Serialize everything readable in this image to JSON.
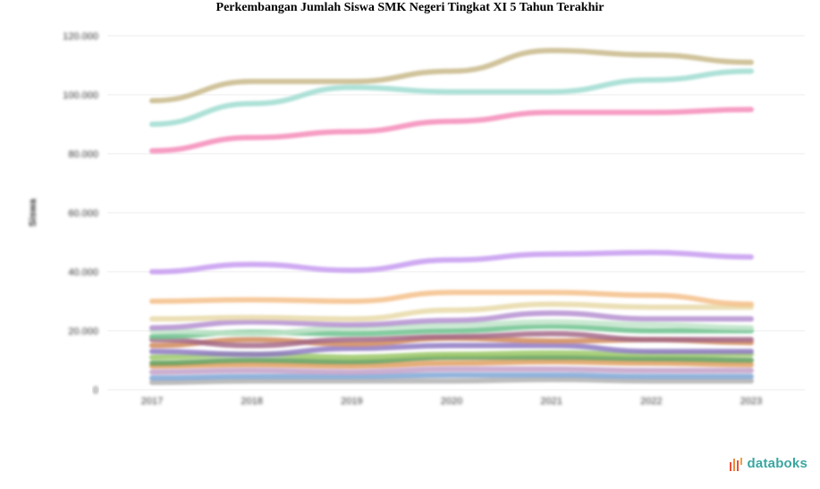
{
  "chart_data": {
    "type": "line",
    "title": "Perkembangan Jumlah Siswa SMK Negeri Tingkat XI 5 Tahun Terakhir",
    "xlabel": "",
    "ylabel": "Siswa",
    "x": [
      "2017",
      "2018",
      "2019",
      "2020",
      "2021",
      "2022",
      "2023"
    ],
    "yticks": [
      "0",
      "20.000",
      "40.000",
      "60.000",
      "80.000",
      "100.000",
      "120.000"
    ],
    "ylim": [
      0,
      120000
    ],
    "grid": true,
    "series": [
      {
        "color": "#c8b98a",
        "values": [
          98000,
          104500,
          104500,
          108000,
          115000,
          113500,
          111000
        ]
      },
      {
        "color": "#9fdcd0",
        "values": [
          90000,
          97000,
          102500,
          101000,
          101000,
          105000,
          108000
        ]
      },
      {
        "color": "#f58bb8",
        "values": [
          81000,
          85500,
          87500,
          91000,
          94000,
          94000,
          95000
        ]
      },
      {
        "color": "#c79bf0",
        "values": [
          40000,
          42500,
          40500,
          44000,
          46000,
          46500,
          45000
        ]
      },
      {
        "color": "#f5c08a",
        "values": [
          30000,
          30500,
          30000,
          33000,
          33000,
          32000,
          29000
        ]
      },
      {
        "color": "#e8d9a8",
        "values": [
          24000,
          24500,
          24000,
          27000,
          29000,
          28000,
          28000
        ]
      },
      {
        "color": "#b58fd0",
        "values": [
          21000,
          23000,
          22000,
          23500,
          26000,
          24000,
          24000
        ]
      },
      {
        "color": "#bfe4c9",
        "values": [
          20000,
          19000,
          21000,
          22000,
          23000,
          22000,
          21000
        ]
      },
      {
        "color": "#6cc28e",
        "values": [
          18000,
          19500,
          19000,
          20000,
          21500,
          20000,
          20000
        ]
      },
      {
        "color": "#a56a88",
        "values": [
          17000,
          15000,
          17000,
          18000,
          19000,
          17000,
          17000
        ]
      },
      {
        "color": "#d08a5a",
        "values": [
          15000,
          17000,
          15500,
          17500,
          16500,
          17000,
          16000
        ]
      },
      {
        "color": "#8e7ac2",
        "values": [
          13000,
          12000,
          14000,
          15000,
          15000,
          13000,
          13000
        ]
      },
      {
        "color": "#9cc86a",
        "values": [
          11000,
          12000,
          11000,
          12000,
          12500,
          12000,
          12000
        ]
      },
      {
        "color": "#5f9e5a",
        "values": [
          9000,
          10000,
          9500,
          11000,
          11000,
          10500,
          10000
        ]
      },
      {
        "color": "#e0a060",
        "values": [
          8000,
          8500,
          8000,
          9000,
          9500,
          9000,
          8500
        ]
      },
      {
        "color": "#c2a0c8",
        "values": [
          6000,
          6500,
          6000,
          7000,
          7000,
          6500,
          6500
        ]
      },
      {
        "color": "#7fa7d6",
        "values": [
          4000,
          4500,
          4500,
          5000,
          5000,
          4500,
          4500
        ]
      },
      {
        "color": "#b0b0b0",
        "values": [
          2500,
          3000,
          3000,
          3000,
          3500,
          3000,
          3000
        ]
      }
    ]
  },
  "logo": {
    "text": "databoks"
  }
}
